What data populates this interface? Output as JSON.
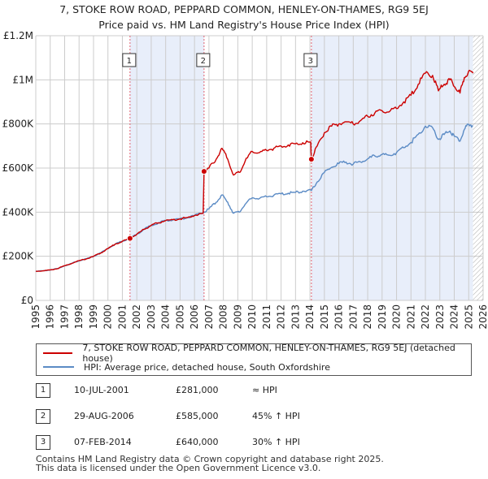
{
  "title_line1": "7, STOKE ROW ROAD, PEPPARD COMMON, HENLEY-ON-THAMES, RG9 5EJ",
  "title_line2": "Price paid vs. HM Land Registry's House Price Index (HPI)",
  "colors": {
    "property": "#cc0000",
    "hpi": "#5b8bc5",
    "shade": "#e8eefa",
    "grid": "#cccccc",
    "vline": "#e06070",
    "hatch": "#999999"
  },
  "legend": {
    "property_label": "7, STOKE ROW ROAD, PEPPARD COMMON, HENLEY-ON-THAMES, RG9 5EJ (detached house)",
    "hpi_label": "HPI: Average price, detached house, South Oxfordshire"
  },
  "sales": [
    {
      "num": "1",
      "date": "10-JUL-2001",
      "price": "£281,000",
      "hpi": "≈ HPI"
    },
    {
      "num": "2",
      "date": "29-AUG-2006",
      "price": "£585,000",
      "hpi": "45% ↑ HPI"
    },
    {
      "num": "3",
      "date": "07-FEB-2014",
      "price": "£640,000",
      "hpi": "30% ↑ HPI"
    }
  ],
  "footer_line1": "Contains HM Land Registry data © Crown copyright and database right 2025.",
  "footer_line2": "This data is licensed under the Open Government Licence v3.0.",
  "chart_data": {
    "type": "line",
    "xlim": [
      1995,
      2026
    ],
    "ylim": [
      0,
      1200000
    ],
    "grid": true,
    "x_ticks": [
      1995,
      1996,
      1997,
      1998,
      1999,
      2000,
      2001,
      2002,
      2003,
      2004,
      2005,
      2006,
      2007,
      2008,
      2009,
      2010,
      2011,
      2012,
      2013,
      2014,
      2015,
      2016,
      2017,
      2018,
      2019,
      2020,
      2021,
      2022,
      2023,
      2024,
      2025,
      2026
    ],
    "y_ticks": [
      {
        "value": 0,
        "label": "£0"
      },
      {
        "value": 200000,
        "label": "£200K"
      },
      {
        "value": 400000,
        "label": "£400K"
      },
      {
        "value": 600000,
        "label": "£600K"
      },
      {
        "value": 800000,
        "label": "£800K"
      },
      {
        "value": 1000000,
        "label": "£1M"
      },
      {
        "value": 1200000,
        "label": "£1.2M"
      }
    ],
    "data_end": 2025.3,
    "shaded_ranges": [
      [
        2001.53,
        2006.66
      ],
      [
        2014.1,
        2025.3
      ]
    ],
    "sale_markers": [
      {
        "label": "1",
        "x": 2001.53,
        "y": 281000
      },
      {
        "label": "2",
        "x": 2006.66,
        "y": 585000
      },
      {
        "label": "3",
        "x": 2014.1,
        "y": 640000
      }
    ],
    "series": [
      {
        "name": "7, STOKE ROW ROAD, PEPPARD COMMON, HENLEY-ON-THAMES, RG9 5EJ (detached house)",
        "x": [
          1995,
          1995.5,
          1996,
          1996.5,
          1997,
          1997.5,
          1998,
          1998.5,
          1999,
          1999.5,
          2000,
          2000.5,
          2001,
          2001.53,
          2002,
          2002.5,
          2003,
          2003.5,
          2004,
          2004.5,
          2005,
          2005.5,
          2006,
          2006.6,
          2006.66,
          2007,
          2007.5,
          2007.9,
          2008.3,
          2008.7,
          2009.1,
          2009.5,
          2010,
          2010.5,
          2011,
          2011.5,
          2012,
          2012.5,
          2013,
          2013.5,
          2014.05,
          2014.1,
          2014.5,
          2015,
          2015.5,
          2016,
          2016.5,
          2017,
          2017.5,
          2018,
          2018.5,
          2019,
          2019.5,
          2020,
          2020.5,
          2021,
          2021.5,
          2022,
          2022.5,
          2022.9,
          2023.3,
          2023.7,
          2024,
          2024.4,
          2024.7,
          2025,
          2025.3
        ],
        "y": [
          132000,
          134000,
          138000,
          144000,
          157000,
          168000,
          180000,
          188000,
          200000,
          215000,
          235000,
          255000,
          268000,
          281000,
          300000,
          322000,
          340000,
          352000,
          362000,
          366000,
          370000,
          375000,
          385000,
          395000,
          585000,
          600000,
          640000,
          690000,
          640000,
          568000,
          580000,
          630000,
          675000,
          670000,
          680000,
          690000,
          700000,
          705000,
          710000,
          715000,
          718000,
          640000,
          700000,
          760000,
          790000,
          800000,
          810000,
          800000,
          815000,
          835000,
          850000,
          860000,
          855000,
          870000,
          900000,
          930000,
          980000,
          1030000,
          1020000,
          950000,
          980000,
          1000000,
          970000,
          940000,
          1010000,
          1040000,
          1030000
        ]
      },
      {
        "name": "HPI: Average price, detached house, South Oxfordshire",
        "x": [
          1995,
          1995.5,
          1996,
          1996.5,
          1997,
          1997.5,
          1998,
          1998.5,
          1999,
          1999.5,
          2000,
          2000.5,
          2001,
          2001.53,
          2002,
          2002.5,
          2003,
          2003.5,
          2004,
          2004.5,
          2005,
          2005.5,
          2006,
          2006.66,
          2007,
          2007.5,
          2007.9,
          2008.3,
          2008.7,
          2009.1,
          2009.5,
          2010,
          2010.5,
          2011,
          2011.5,
          2012,
          2012.5,
          2013,
          2013.5,
          2014.1,
          2014.5,
          2015,
          2015.5,
          2016,
          2016.5,
          2017,
          2017.5,
          2018,
          2018.5,
          2019,
          2019.5,
          2020,
          2020.5,
          2021,
          2021.5,
          2022,
          2022.5,
          2022.9,
          2023.3,
          2023.7,
          2024,
          2024.4,
          2024.7,
          2025,
          2025.3
        ],
        "y": [
          132000,
          134000,
          138000,
          144000,
          157000,
          168000,
          180000,
          188000,
          200000,
          215000,
          235000,
          255000,
          268000,
          281000,
          300000,
          322000,
          340000,
          352000,
          362000,
          366000,
          370000,
          375000,
          385000,
          400000,
          415000,
          445000,
          478000,
          445000,
          395000,
          400000,
          435000,
          465000,
          462000,
          470000,
          477000,
          483000,
          486000,
          490000,
          495000,
          498000,
          537000,
          580000,
          603000,
          620000,
          627000,
          618000,
          628000,
          642000,
          655000,
          662000,
          658000,
          670000,
          692000,
          716000,
          753000,
          790000,
          783000,
          730000,
          752000,
          768000,
          745000,
          722000,
          775000,
          798000,
          792000
        ]
      }
    ]
  }
}
